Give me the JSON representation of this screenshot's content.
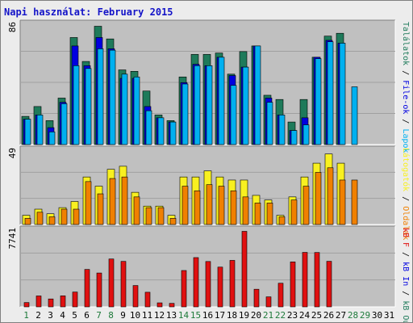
{
  "title": "Napi használat: February 2015",
  "colors": {
    "plot_bg": "#c0c0c0",
    "grid": "#a0a0a0",
    "hits": "#1e7a5a",
    "files": "#0000e0",
    "pages": "#00b0f0",
    "visits": "#f8f020",
    "sites": "#f08000",
    "kbytes": "#e01010",
    "weekend_label": "#1e7a3a",
    "day_label": "#000000"
  },
  "chart_data": [
    {
      "type": "bar",
      "panel": "hits-files-pages",
      "ymax_label": "86",
      "right_label_parts": [
        {
          "text": "Találatok",
          "color": "#1e7a5a"
        },
        {
          "text": " / ",
          "color": "#000000"
        },
        {
          "text": "File-ok",
          "color": "#0000e0"
        },
        {
          "text": " / ",
          "color": "#000000"
        },
        {
          "text": "Lapok",
          "color": "#00b0f0"
        }
      ],
      "ylim": [
        0,
        86
      ],
      "series": [
        {
          "name": "Találatok",
          "color": "#1e7a5a",
          "values": [
            20,
            27,
            17,
            33,
            76,
            59,
            84,
            75,
            53,
            52,
            38,
            21,
            17,
            48,
            64,
            64,
            65,
            50,
            66,
            70,
            35,
            32,
            16,
            32,
            62,
            77,
            79,
            0
          ]
        },
        {
          "name": "File-ok",
          "color": "#0000e0",
          "values": [
            18,
            21,
            12,
            30,
            70,
            56,
            76,
            68,
            47,
            47,
            27,
            19,
            16,
            44,
            57,
            56,
            62,
            49,
            55,
            70,
            33,
            21,
            10,
            19,
            62,
            74,
            72,
            0
          ]
        },
        {
          "name": "Lapok",
          "color": "#00b0f0",
          "values": [
            18,
            21,
            9,
            29,
            56,
            54,
            68,
            67,
            50,
            48,
            24,
            19,
            16,
            43,
            56,
            56,
            62,
            42,
            55,
            70,
            30,
            21,
            10,
            14,
            61,
            73,
            72,
            41
          ]
        }
      ]
    },
    {
      "type": "bar",
      "panel": "visits-sites",
      "ymax_label": "49",
      "right_label_parts": [
        {
          "text": "Látogatók",
          "color": "#f8f020"
        },
        {
          "text": " / ",
          "color": "#000000"
        },
        {
          "text": "Oldalak",
          "color": "#f08000"
        }
      ],
      "ylim": [
        0,
        49
      ],
      "series": [
        {
          "name": "Látogatók",
          "color": "#f8f020",
          "values": [
            6,
            10,
            7,
            11,
            15,
            31,
            25,
            36,
            38,
            21,
            12,
            12,
            6,
            31,
            31,
            35,
            31,
            29,
            29,
            19,
            16,
            6,
            18,
            31,
            40,
            46,
            40,
            0
          ]
        },
        {
          "name": "Oldalak",
          "color": "#f08000",
          "values": [
            4,
            8,
            5,
            10,
            10,
            28,
            20,
            30,
            31,
            18,
            11,
            11,
            4,
            25,
            22,
            26,
            25,
            22,
            18,
            14,
            14,
            5,
            16,
            25,
            34,
            37,
            29,
            29
          ]
        }
      ]
    },
    {
      "type": "bar",
      "panel": "kbytes",
      "ymax_label": "7741",
      "right_label_parts": [
        {
          "text": "kB F",
          "color": "#e01010"
        },
        {
          "text": " / ",
          "color": "#000000"
        },
        {
          "text": "kB In",
          "color": "#0000e0"
        },
        {
          "text": " / ",
          "color": "#000000"
        },
        {
          "text": "kB Out",
          "color": "#1e7a5a"
        }
      ],
      "ylim": [
        0,
        7741
      ],
      "series": [
        {
          "name": "kB F",
          "color": "#e01010",
          "values": [
            430,
            1090,
            790,
            1100,
            1480,
            3740,
            3380,
            4780,
            4540,
            2130,
            1460,
            400,
            350,
            3630,
            4920,
            4530,
            3970,
            4640,
            7540,
            1760,
            1000,
            2360,
            4490,
            5440,
            5430,
            4550,
            0,
            0
          ]
        }
      ]
    }
  ],
  "days": [
    {
      "label": "1",
      "weekend": true
    },
    {
      "label": "2",
      "weekend": false
    },
    {
      "label": "3",
      "weekend": false
    },
    {
      "label": "4",
      "weekend": false
    },
    {
      "label": "5",
      "weekend": false
    },
    {
      "label": "6",
      "weekend": false
    },
    {
      "label": "7",
      "weekend": true
    },
    {
      "label": "8",
      "weekend": true
    },
    {
      "label": "9",
      "weekend": false
    },
    {
      "label": "10",
      "weekend": false
    },
    {
      "label": "11",
      "weekend": false
    },
    {
      "label": "12",
      "weekend": false
    },
    {
      "label": "13",
      "weekend": false
    },
    {
      "label": "14",
      "weekend": true
    },
    {
      "label": "15",
      "weekend": true
    },
    {
      "label": "16",
      "weekend": false
    },
    {
      "label": "17",
      "weekend": false
    },
    {
      "label": "18",
      "weekend": false
    },
    {
      "label": "19",
      "weekend": false
    },
    {
      "label": "20",
      "weekend": false
    },
    {
      "label": "21",
      "weekend": true
    },
    {
      "label": "22",
      "weekend": true
    },
    {
      "label": "23",
      "weekend": false
    },
    {
      "label": "24",
      "weekend": false
    },
    {
      "label": "25",
      "weekend": false
    },
    {
      "label": "26",
      "weekend": false
    },
    {
      "label": "27",
      "weekend": false
    },
    {
      "label": "28",
      "weekend": true
    },
    {
      "label": "29",
      "weekend": true
    },
    {
      "label": "30",
      "weekend": false
    },
    {
      "label": "31",
      "weekend": false
    }
  ]
}
